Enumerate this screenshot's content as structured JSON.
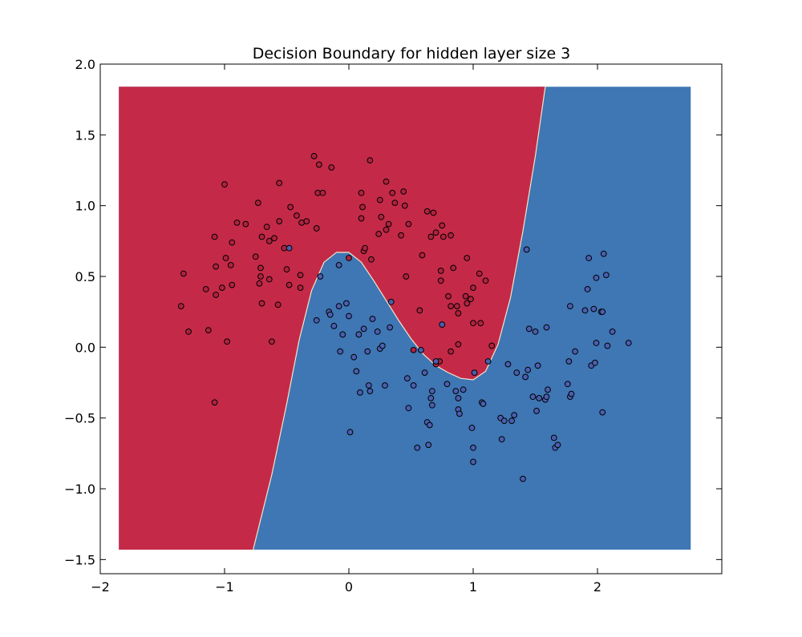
{
  "chart_data": {
    "type": "scatter",
    "title": "Decision Boundary for hidden layer size 3",
    "xlabel": "",
    "ylabel": "",
    "xlim": [
      -2.0,
      3.0
    ],
    "ylim": [
      -1.6,
      2.0
    ],
    "x_ticks": [
      -2,
      -1,
      0,
      1,
      2
    ],
    "x_tick_labels": [
      "−2",
      "−1",
      "0",
      "1",
      "2"
    ],
    "y_ticks": [
      -1.5,
      -1.0,
      -0.5,
      0.0,
      0.5,
      1.0,
      1.5,
      2.0
    ],
    "y_tick_labels": [
      "−1.5",
      "−1.0",
      "−0.5",
      "0.0",
      "0.5",
      "1.0",
      "1.5",
      "2.0"
    ],
    "grid": false,
    "region_extent": {
      "x": [
        -1.85,
        2.75
      ],
      "y": [
        -1.43,
        1.84
      ]
    },
    "region_colors": {
      "class_0": "#c42a48",
      "class_1": "#3f76b4"
    },
    "point_colors": {
      "class_0": "#b0223e",
      "class_1": "#4a5fb0"
    },
    "boundary": [
      [
        -0.77,
        -1.43
      ],
      [
        -0.62,
        -0.9
      ],
      [
        -0.5,
        -0.4
      ],
      [
        -0.4,
        0.05
      ],
      [
        -0.3,
        0.4
      ],
      [
        -0.2,
        0.6
      ],
      [
        -0.1,
        0.67
      ],
      [
        0.0,
        0.67
      ],
      [
        0.1,
        0.6
      ],
      [
        0.2,
        0.47
      ],
      [
        0.3,
        0.33
      ],
      [
        0.4,
        0.19
      ],
      [
        0.5,
        0.06
      ],
      [
        0.6,
        -0.05
      ],
      [
        0.7,
        -0.13
      ],
      [
        0.8,
        -0.18
      ],
      [
        0.9,
        -0.22
      ],
      [
        1.0,
        -0.23
      ],
      [
        1.1,
        -0.17
      ],
      [
        1.2,
        0.02
      ],
      [
        1.3,
        0.35
      ],
      [
        1.4,
        0.82
      ],
      [
        1.5,
        1.35
      ],
      [
        1.58,
        1.84
      ]
    ],
    "series": [
      {
        "class": 0,
        "points": [
          [
            -1.35,
            0.29
          ],
          [
            -1.33,
            0.52
          ],
          [
            -1.29,
            0.11
          ],
          [
            -1.15,
            0.41
          ],
          [
            -1.13,
            0.12
          ],
          [
            -1.08,
            -0.39
          ],
          [
            -1.08,
            0.78
          ],
          [
            -1.07,
            0.57
          ],
          [
            -1.07,
            0.37
          ],
          [
            -1.02,
            0.42
          ],
          [
            -1.0,
            1.15
          ],
          [
            -0.99,
            0.63
          ],
          [
            -0.98,
            0.04
          ],
          [
            -0.95,
            0.58
          ],
          [
            -0.94,
            0.74
          ],
          [
            -0.94,
            0.44
          ],
          [
            -0.9,
            0.88
          ],
          [
            -0.83,
            0.87
          ],
          [
            -0.75,
            0.64
          ],
          [
            -0.73,
            1.02
          ],
          [
            -0.72,
            0.45
          ],
          [
            -0.71,
            0.56
          ],
          [
            -0.71,
            0.5
          ],
          [
            -0.7,
            0.31
          ],
          [
            -0.7,
            0.78
          ],
          [
            -0.66,
            0.85
          ],
          [
            -0.64,
            0.75
          ],
          [
            -0.64,
            0.48
          ],
          [
            -0.62,
            0.04
          ],
          [
            -0.6,
            0.77
          ],
          [
            -0.57,
            0.3
          ],
          [
            -0.56,
            0.89
          ],
          [
            -0.56,
            1.16
          ],
          [
            -0.52,
            0.7
          ],
          [
            -0.5,
            0.55
          ],
          [
            -0.48,
            0.44
          ],
          [
            -0.47,
            0.99
          ],
          [
            -0.42,
            0.93
          ],
          [
            -0.39,
            0.42
          ],
          [
            -0.39,
            0.51
          ],
          [
            -0.38,
            0.88
          ],
          [
            -0.34,
            0.89
          ],
          [
            -0.28,
            1.35
          ],
          [
            -0.26,
            0.84
          ],
          [
            -0.25,
            1.09
          ],
          [
            -0.24,
            1.29
          ],
          [
            -0.21,
            1.09
          ],
          [
            -0.14,
            1.27
          ],
          [
            0.0,
            0.63
          ],
          [
            0.1,
            1.09
          ],
          [
            0.1,
            0.91
          ],
          [
            0.11,
            0.99
          ],
          [
            0.12,
            0.68
          ],
          [
            0.13,
            0.7
          ],
          [
            0.17,
            1.32
          ],
          [
            0.18,
            0.62
          ],
          [
            0.24,
            0.8
          ],
          [
            0.25,
            1.04
          ],
          [
            0.26,
            0.92
          ],
          [
            0.3,
            1.17
          ],
          [
            0.3,
            0.83
          ],
          [
            0.32,
            0.87
          ],
          [
            0.35,
            1.09
          ],
          [
            0.37,
            1.02
          ],
          [
            0.42,
            0.79
          ],
          [
            0.44,
            1.1
          ],
          [
            0.45,
            1.0
          ],
          [
            0.46,
            0.5
          ],
          [
            0.48,
            0.87
          ],
          [
            0.59,
            0.65
          ],
          [
            0.63,
            0.96
          ],
          [
            0.66,
            0.78
          ],
          [
            0.68,
            0.95
          ],
          [
            0.7,
            0.81
          ],
          [
            0.74,
            0.47
          ],
          [
            0.74,
            0.54
          ],
          [
            0.75,
            0.86
          ],
          [
            0.76,
            0.78
          ],
          [
            0.8,
            0.36
          ],
          [
            0.82,
            0.79
          ],
          [
            0.82,
            0.29
          ],
          [
            0.84,
            0.56
          ],
          [
            0.87,
            0.29
          ],
          [
            0.88,
            0.24
          ],
          [
            0.94,
            0.36
          ],
          [
            0.95,
            0.63
          ],
          [
            0.95,
            0.31
          ],
          [
            0.98,
            0.34
          ],
          [
            1.0,
            0.17
          ],
          [
            1.0,
            0.42
          ],
          [
            1.05,
            0.52
          ],
          [
            1.06,
            0.17
          ],
          [
            1.1,
            0.47
          ],
          [
            1.15,
            0.01
          ],
          [
            0.88,
            0.02
          ],
          [
            0.82,
            -0.03
          ],
          [
            0.73,
            -0.1
          ],
          [
            0.7,
            -0.12
          ],
          [
            0.57,
            0.26
          ],
          [
            0.52,
            -0.02
          ]
        ]
      },
      {
        "class": 1,
        "points": [
          [
            -0.48,
            0.7
          ],
          [
            -0.26,
            0.19
          ],
          [
            -0.23,
            0.5
          ],
          [
            -0.16,
            0.25
          ],
          [
            -0.15,
            0.23
          ],
          [
            -0.12,
            0.15
          ],
          [
            -0.08,
            0.29
          ],
          [
            -0.08,
            0.58
          ],
          [
            -0.07,
            -0.03
          ],
          [
            -0.05,
            0.09
          ],
          [
            -0.02,
            0.31
          ],
          [
            0.0,
            0.22
          ],
          [
            0.01,
            -0.6
          ],
          [
            0.04,
            -0.07
          ],
          [
            0.06,
            -0.17
          ],
          [
            0.08,
            0.09
          ],
          [
            0.09,
            -0.32
          ],
          [
            0.12,
            0.13
          ],
          [
            0.15,
            -0.03
          ],
          [
            0.16,
            -0.27
          ],
          [
            0.17,
            -0.31
          ],
          [
            0.19,
            0.2
          ],
          [
            0.23,
            0.11
          ],
          [
            0.25,
            -0.01
          ],
          [
            0.27,
            0.01
          ],
          [
            0.29,
            -0.27
          ],
          [
            0.33,
            0.14
          ],
          [
            0.34,
            0.32
          ],
          [
            0.47,
            -0.22
          ],
          [
            0.48,
            -0.43
          ],
          [
            0.52,
            -0.27
          ],
          [
            0.55,
            -0.71
          ],
          [
            0.58,
            -0.02
          ],
          [
            0.61,
            -0.18
          ],
          [
            0.63,
            -0.53
          ],
          [
            0.64,
            -0.69
          ],
          [
            0.65,
            -0.55
          ],
          [
            0.66,
            -0.36
          ],
          [
            0.67,
            -0.41
          ],
          [
            0.67,
            -0.31
          ],
          [
            0.7,
            -0.1
          ],
          [
            0.75,
            0.16
          ],
          [
            0.79,
            -0.26
          ],
          [
            0.86,
            -0.31
          ],
          [
            0.88,
            -0.44
          ],
          [
            0.88,
            -0.36
          ],
          [
            0.89,
            -0.47
          ],
          [
            0.92,
            -0.3
          ],
          [
            0.99,
            -0.57
          ],
          [
            1.0,
            -0.71
          ],
          [
            1.0,
            -0.81
          ],
          [
            1.01,
            -0.18
          ],
          [
            1.07,
            -0.39
          ],
          [
            1.08,
            -0.4
          ],
          [
            1.12,
            -0.1
          ],
          [
            1.22,
            -0.5
          ],
          [
            1.23,
            -0.65
          ],
          [
            1.25,
            -0.52
          ],
          [
            1.28,
            -0.12
          ],
          [
            1.31,
            -0.52
          ],
          [
            1.33,
            -0.48
          ],
          [
            1.35,
            -0.18
          ],
          [
            1.4,
            -0.93
          ],
          [
            1.42,
            -0.21
          ],
          [
            1.43,
            0.69
          ],
          [
            1.44,
            -0.16
          ],
          [
            1.45,
            0.13
          ],
          [
            1.48,
            -0.35
          ],
          [
            1.5,
            0.11
          ],
          [
            1.51,
            -0.45
          ],
          [
            1.52,
            -0.13
          ],
          [
            1.53,
            -0.36
          ],
          [
            1.58,
            -0.37
          ],
          [
            1.59,
            -0.35
          ],
          [
            1.6,
            -0.3
          ],
          [
            1.59,
            0.14
          ],
          [
            1.65,
            -0.64
          ],
          [
            1.66,
            -0.71
          ],
          [
            1.68,
            -0.69
          ],
          [
            1.76,
            -0.26
          ],
          [
            1.77,
            -0.1
          ],
          [
            1.78,
            -0.35
          ],
          [
            1.79,
            -0.33
          ],
          [
            1.78,
            0.29
          ],
          [
            1.82,
            -0.03
          ],
          [
            1.9,
            0.26
          ],
          [
            1.92,
            0.41
          ],
          [
            1.93,
            0.63
          ],
          [
            1.95,
            -0.13
          ],
          [
            1.97,
            0.27
          ],
          [
            1.98,
            -0.11
          ],
          [
            1.99,
            0.03
          ],
          [
            1.99,
            0.49
          ],
          [
            2.03,
            0.25
          ],
          [
            2.04,
            0.25
          ],
          [
            2.04,
            -0.46
          ],
          [
            2.05,
            0.66
          ],
          [
            2.07,
            0.51
          ],
          [
            2.08,
            0.01
          ],
          [
            2.12,
            0.11
          ],
          [
            2.25,
            0.03
          ]
        ]
      }
    ]
  }
}
